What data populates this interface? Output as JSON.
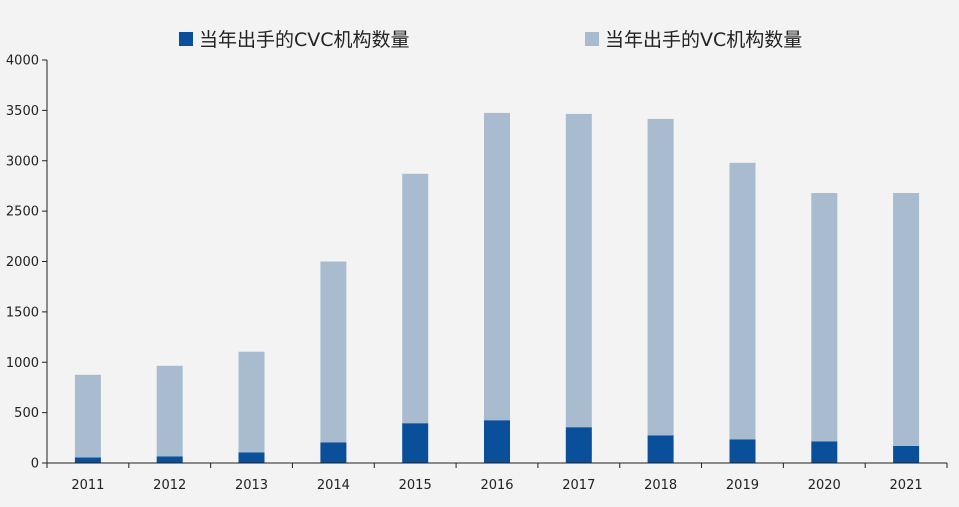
{
  "chart_data": {
    "type": "bar",
    "stacked": true,
    "categories": [
      "2011",
      "2012",
      "2013",
      "2014",
      "2015",
      "2016",
      "2017",
      "2018",
      "2019",
      "2020",
      "2021"
    ],
    "series": [
      {
        "name": "当年出手的CVC机构数量",
        "color": "#0a4f99",
        "values": [
          55,
          65,
          105,
          205,
          395,
          425,
          355,
          275,
          235,
          215,
          170
        ]
      },
      {
        "name": "当年出手的VC机构数量",
        "color": "#a9bccf",
        "values": [
          820,
          900,
          1000,
          1795,
          2475,
          3050,
          3110,
          3140,
          2745,
          2465,
          2510
        ]
      }
    ],
    "yticks": [
      "0",
      "500",
      "1000",
      "1500",
      "2000",
      "2500",
      "3000",
      "3500",
      "4000"
    ],
    "ylim": [
      0,
      4000
    ],
    "grid": false,
    "legend_position": "top"
  }
}
